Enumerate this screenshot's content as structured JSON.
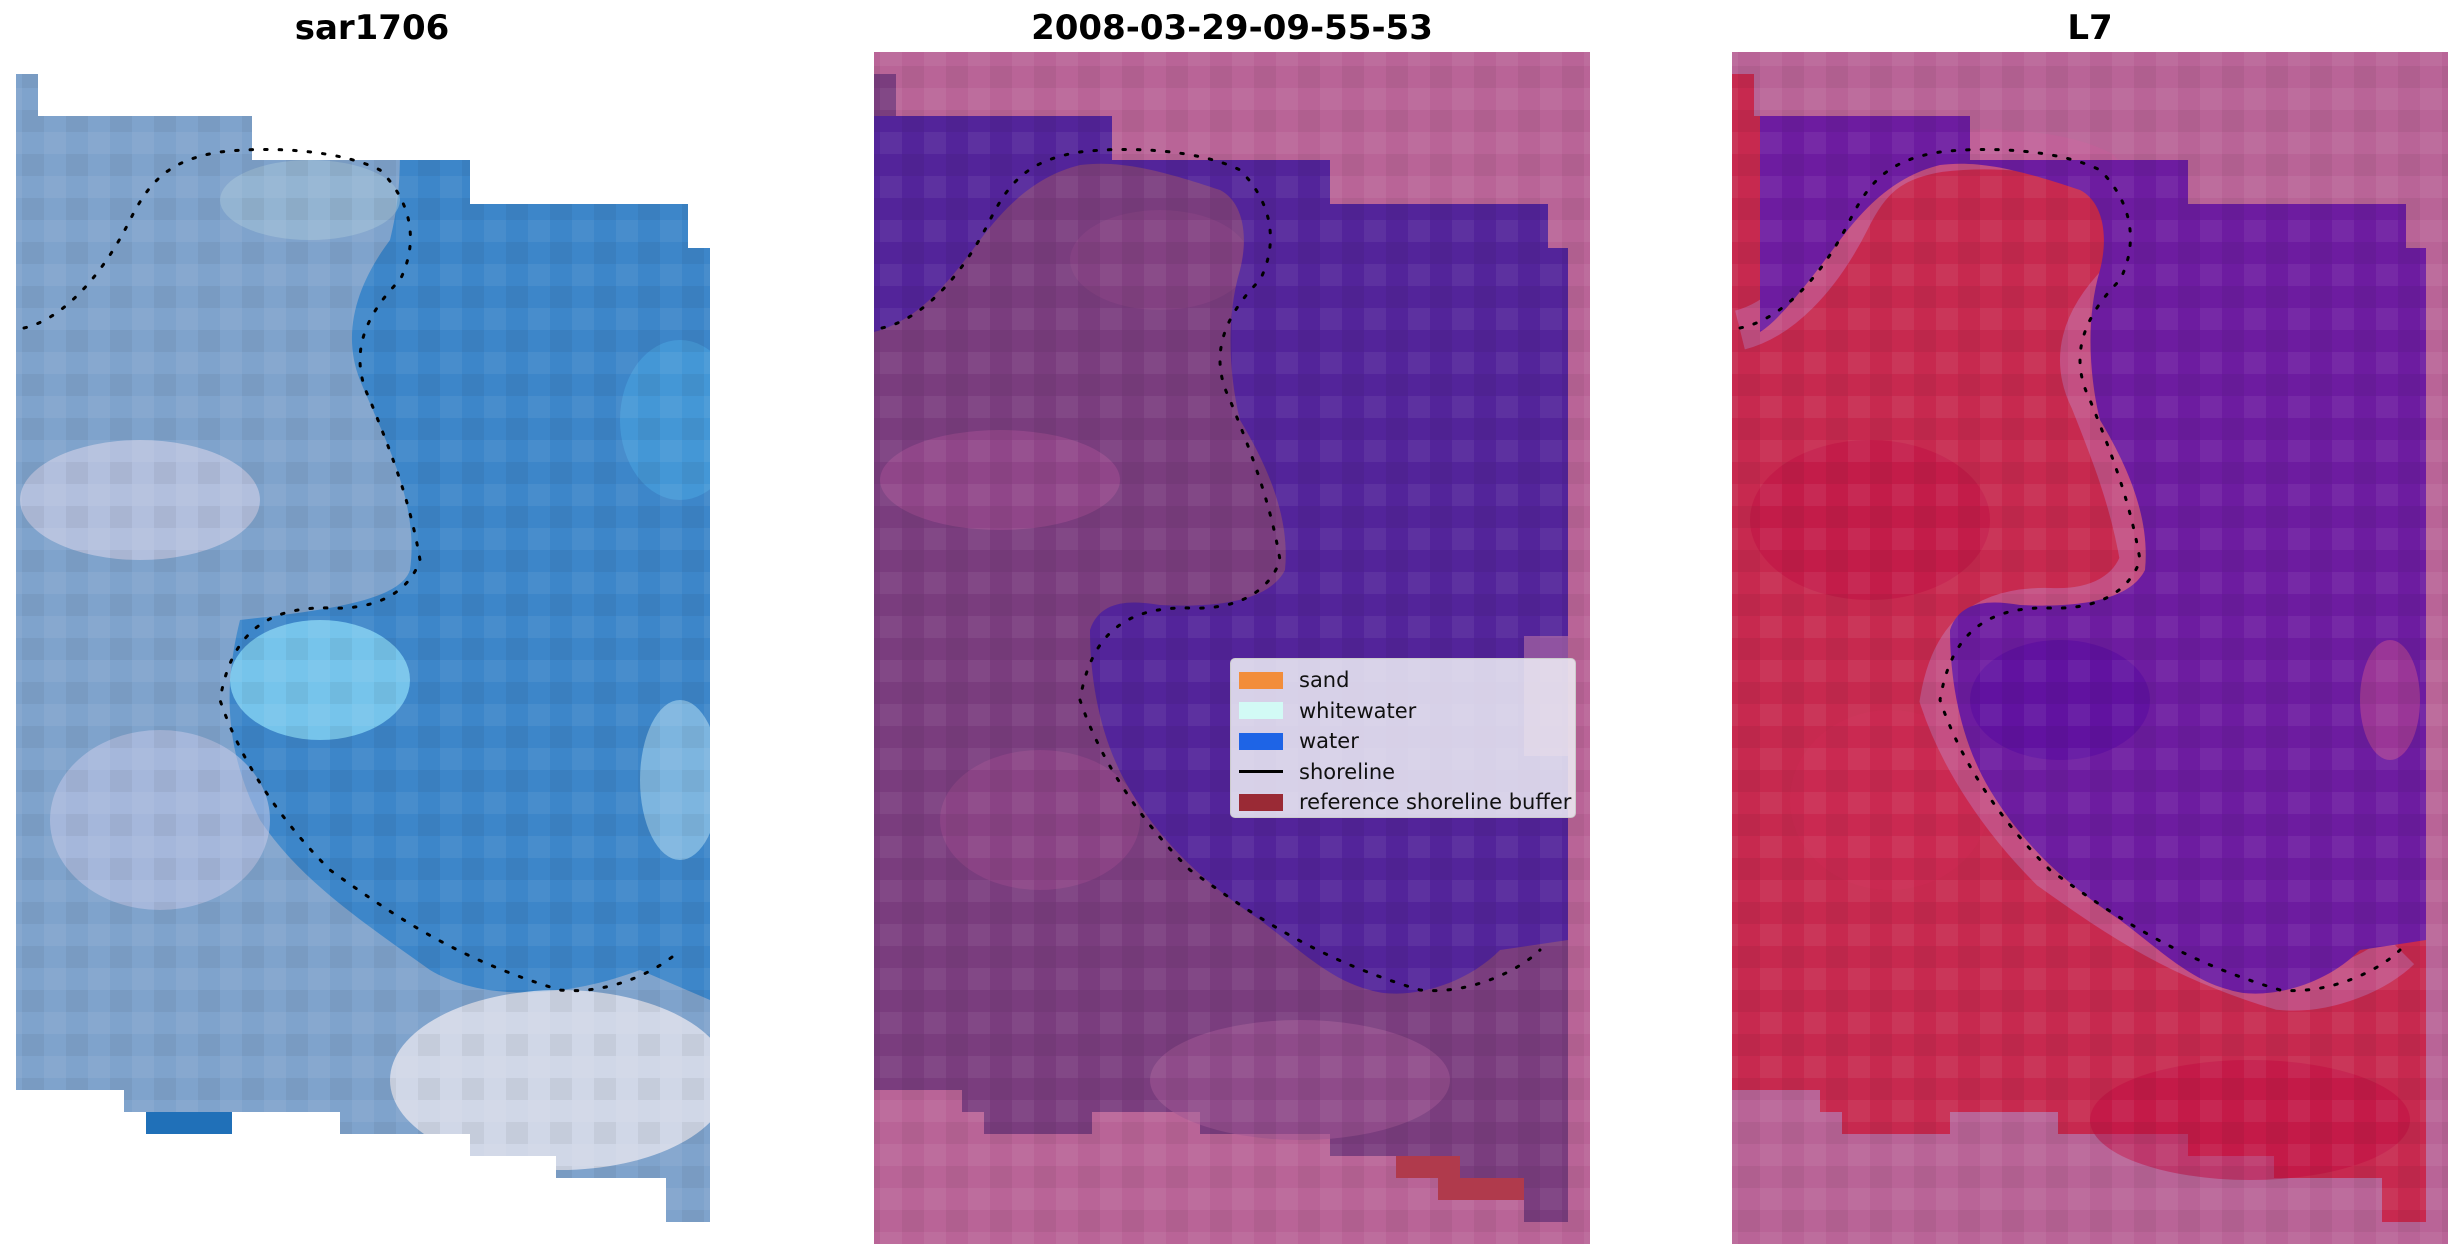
{
  "panels": [
    {
      "title": "sar1706",
      "kind": "rgb-satellite-image"
    },
    {
      "title": "2008-03-29-09-55-53",
      "kind": "classified-image"
    },
    {
      "title": "L7",
      "kind": "index-image"
    }
  ],
  "legend": {
    "items": [
      {
        "label": "sand",
        "color": "#f28d3a",
        "kind": "patch"
      },
      {
        "label": "whitewater",
        "color": "#d2faf5",
        "kind": "patch"
      },
      {
        "label": "water",
        "color": "#1e64e6",
        "kind": "patch"
      },
      {
        "label": "shoreline",
        "color": "#000000",
        "kind": "line"
      },
      {
        "label": "reference shoreline buffer",
        "color": "#9a2a35",
        "kind": "patch"
      }
    ]
  },
  "colors": {
    "rgb_land": "#7fa3cc",
    "rgb_water": "#3d86c9",
    "class_background": "#b96497",
    "class_land": "#7a3d7e",
    "class_water": "#53249a",
    "class_buffer": "#b03a4c",
    "index_background": "#b96497",
    "index_land": "#c7294f",
    "index_water": "#6d1ca0"
  }
}
